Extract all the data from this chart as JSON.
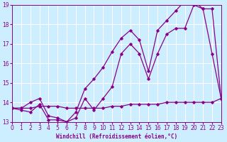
{
  "xlabel": "Windchill (Refroidissement éolien,°C)",
  "background_color": "#cceeff",
  "grid_color": "#ffffff",
  "line_color": "#880088",
  "xmin": 0,
  "xmax": 23,
  "ymin": 13,
  "ymax": 19,
  "xticks": [
    0,
    1,
    2,
    3,
    4,
    5,
    6,
    7,
    8,
    9,
    10,
    11,
    12,
    13,
    14,
    15,
    16,
    17,
    18,
    19,
    20,
    21,
    22,
    23
  ],
  "yticks": [
    13,
    14,
    15,
    16,
    17,
    18,
    19
  ],
  "series_flat_x": [
    0,
    1,
    2,
    3,
    4,
    5,
    6,
    7,
    8,
    9,
    10,
    11,
    12,
    13,
    14,
    15,
    16,
    17,
    18,
    19,
    20,
    21,
    22,
    23
  ],
  "series_flat_y": [
    13.7,
    13.7,
    13.7,
    13.8,
    13.8,
    13.8,
    13.7,
    13.7,
    13.7,
    13.7,
    13.7,
    13.8,
    13.8,
    13.9,
    13.9,
    13.9,
    13.9,
    14.0,
    14.0,
    14.0,
    14.0,
    14.0,
    14.0,
    14.2
  ],
  "series_mid_x": [
    0,
    1,
    2,
    3,
    4,
    5,
    6,
    7,
    8,
    9,
    10,
    11,
    12,
    13,
    14,
    15,
    16,
    17,
    18,
    19,
    20,
    21,
    22,
    23
  ],
  "series_mid_y": [
    13.7,
    13.6,
    13.5,
    13.9,
    13.1,
    13.1,
    13.0,
    13.2,
    14.2,
    13.6,
    14.2,
    14.8,
    16.5,
    17.0,
    16.5,
    15.2,
    16.5,
    17.5,
    17.8,
    17.8,
    19.0,
    18.8,
    18.8,
    14.2
  ],
  "series_top_x": [
    0,
    1,
    2,
    3,
    4,
    5,
    6,
    7,
    8,
    9,
    10,
    11,
    12,
    13,
    14,
    15,
    16,
    17,
    18,
    19,
    20,
    21,
    22,
    23
  ],
  "series_top_y": [
    13.7,
    13.7,
    14.0,
    14.2,
    13.3,
    13.2,
    13.0,
    13.5,
    14.7,
    15.2,
    15.8,
    16.6,
    17.3,
    17.7,
    17.2,
    15.6,
    17.7,
    18.2,
    18.7,
    19.2,
    19.2,
    18.8,
    16.5,
    14.2
  ]
}
